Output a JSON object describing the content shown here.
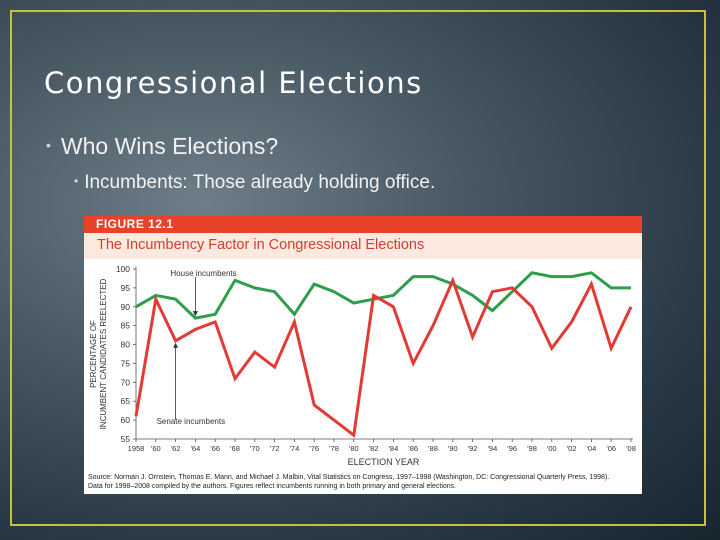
{
  "slide": {
    "title": "Congressional Elections",
    "bullet1": "Who Wins Elections?",
    "bullet2": "Incumbents: Those already holding office."
  },
  "figure": {
    "label": "FIGURE 12.1",
    "source_line1": "Source: Norman J. Ornstein, Thomas E. Mann, and Michael J. Malbin, Vital Statistics on Congress, 1997–1998 (Washington, DC: Congressional Quarterly Press, 1998).",
    "source_line2": "Data for 1998–2008 compiled by the authors. Figures reflect incumbents running in both primary and general elections."
  },
  "chart_data": {
    "type": "line",
    "title": "The Incumbency Factor in Congressional Elections",
    "xlabel": "ELECTION YEAR",
    "ylabel_line1": "PERCENTAGE OF",
    "ylabel_line2": "INCUMBENT CANDIDATES REELECTED",
    "ylim": [
      55,
      100
    ],
    "yticks": [
      55,
      60,
      65,
      70,
      75,
      80,
      85,
      90,
      95,
      100
    ],
    "x": [
      1958,
      1960,
      1962,
      1964,
      1966,
      1968,
      1970,
      1972,
      1974,
      1976,
      1978,
      1980,
      1982,
      1984,
      1986,
      1988,
      1990,
      1992,
      1994,
      1996,
      1998,
      2000,
      2002,
      2004,
      2006,
      2008
    ],
    "xtick_labels": [
      "1958",
      "'60",
      "'62",
      "'64",
      "'66",
      "'68",
      "'70",
      "'72",
      "'74",
      "'76",
      "'78",
      "'80",
      "'82",
      "'84",
      "'86",
      "'88",
      "'90",
      "'92",
      "'94",
      "'96",
      "'98",
      "'00",
      "'02",
      "'04",
      "'06",
      "'08"
    ],
    "series": [
      {
        "name": "House incumbents",
        "color": "#2e9e4a",
        "values": [
          90,
          93,
          92,
          87,
          88,
          97,
          95,
          94,
          88,
          96,
          94,
          91,
          92,
          93,
          98,
          98,
          96,
          93,
          89,
          94,
          99,
          98,
          98,
          99,
          95,
          95
        ]
      },
      {
        "name": "Senate incumbents",
        "color": "#e23a34",
        "values": [
          61,
          92,
          81,
          84,
          86,
          71,
          78,
          74,
          86,
          64,
          60,
          56,
          93,
          90,
          75,
          85,
          97,
          82,
          94,
          95,
          90,
          79,
          86,
          96,
          79,
          90
        ]
      }
    ],
    "annotations": [
      "House incumbents",
      "Senate incumbents"
    ]
  }
}
